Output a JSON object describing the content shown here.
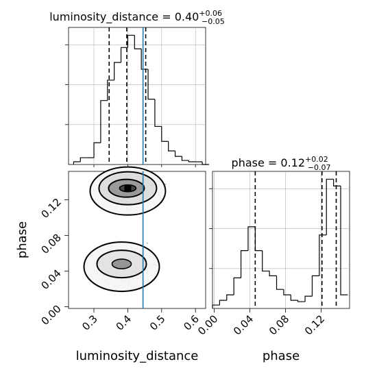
{
  "chart_data": {
    "type": "corner",
    "parameters": [
      "luminosity_distance",
      "phase"
    ],
    "truth": {
      "luminosity_distance": 0.445
    },
    "panels": {
      "lum_hist": {
        "type": "histogram",
        "title_param": "luminosity_distance",
        "title_median": "0.40",
        "title_plus": "+0.06",
        "title_minus": "−0.05",
        "xlim": [
          0.225,
          0.63
        ],
        "bins": [
          0.24,
          0.26,
          0.28,
          0.3,
          0.32,
          0.34,
          0.36,
          0.38,
          0.4,
          0.42,
          0.44,
          0.46,
          0.48,
          0.5,
          0.52,
          0.54,
          0.56,
          0.58,
          0.6,
          0.62
        ],
        "heights": [
          2,
          5,
          5,
          16,
          47,
          62,
          75,
          86,
          95,
          85,
          70,
          48,
          28,
          17,
          10,
          6,
          3,
          2,
          2,
          0
        ],
        "quantiles": [
          0.345,
          0.397,
          0.453
        ],
        "y_ticks": 3
      },
      "phase_hist": {
        "type": "histogram",
        "title_param": "phase",
        "title_median": "0.12",
        "title_plus": "+0.02",
        "title_minus": "−0.07",
        "xlim": [
          -0.002,
          0.152
        ],
        "bins": [
          -0.002,
          0.006,
          0.014,
          0.022,
          0.03,
          0.038,
          0.046,
          0.054,
          0.062,
          0.07,
          0.078,
          0.086,
          0.094,
          0.102,
          0.11,
          0.118,
          0.126,
          0.134,
          0.142,
          0.15
        ],
        "heights": [
          5,
          12,
          20,
          45,
          85,
          120,
          85,
          55,
          48,
          28,
          20,
          12,
          10,
          18,
          48,
          108,
          190,
          180,
          20
        ],
        "quantiles": [
          0.046,
          0.121,
          0.137
        ],
        "y_ticks": 3
      },
      "joint": {
        "type": "2d-contour",
        "xlim": [
          0.225,
          0.63
        ],
        "ylim": [
          -0.002,
          0.152
        ],
        "modes": [
          {
            "x": 0.4,
            "y": 0.133
          },
          {
            "x": 0.39,
            "y": 0.048
          }
        ]
      }
    },
    "axes": {
      "x_lum": {
        "label": "luminosity_distance",
        "ticks": [
          "0.3",
          "0.4",
          "0.5",
          "0.6"
        ],
        "tick_values": [
          0.3,
          0.4,
          0.5,
          0.6
        ]
      },
      "x_phase": {
        "label": "phase",
        "ticks": [
          "0.00",
          "0.04",
          "0.08",
          "0.12"
        ],
        "tick_values": [
          0.0,
          0.04,
          0.08,
          0.12
        ]
      },
      "y_phase": {
        "label": "phase",
        "ticks": [
          "0.00",
          "0.04",
          "0.08",
          "0.12"
        ],
        "tick_values": [
          0.0,
          0.04,
          0.08,
          0.12
        ]
      }
    },
    "grid": true,
    "colors": {
      "truth": "#1f77b4",
      "step": "#000000",
      "grid": "#b0b0b0"
    }
  }
}
